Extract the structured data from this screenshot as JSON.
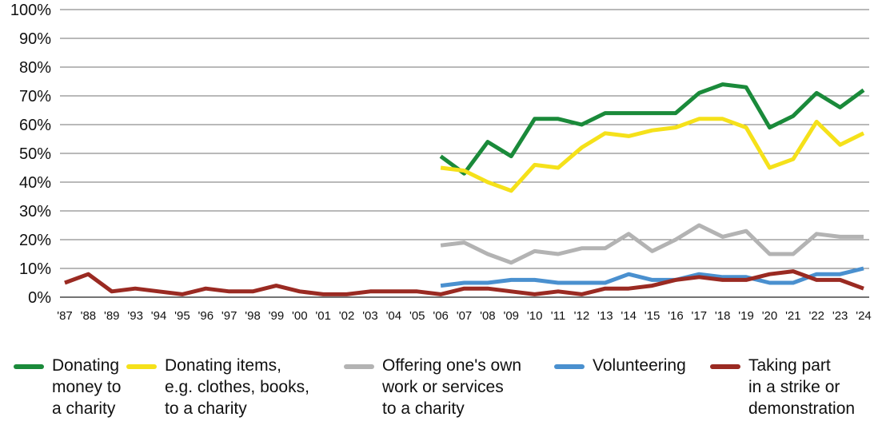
{
  "chart_data": {
    "type": "line",
    "title": "",
    "xlabel": "",
    "ylabel": "",
    "ylim": [
      0,
      100
    ],
    "y_ticks": [
      "0%",
      "10%",
      "20%",
      "30%",
      "40%",
      "50%",
      "60%",
      "70%",
      "80%",
      "90%",
      "100%"
    ],
    "grid": "horizontal",
    "legend_position": "bottom",
    "categories": [
      "'87",
      "'88",
      "'89",
      "'93",
      "'94",
      "'95",
      "'96",
      "'97",
      "'98",
      "'99",
      "'00",
      "'01",
      "'02",
      "'03",
      "'04",
      "'05",
      "'06",
      "'07",
      "'08",
      "'09",
      "'10",
      "'11",
      "'12",
      "'13",
      "'14",
      "'15",
      "'16",
      "'17",
      "'18",
      "'19",
      "'20",
      "'21",
      "'22",
      "'23",
      "'24"
    ],
    "series": [
      {
        "name": "Donating money to a charity",
        "label_lines": "Donating\nmoney to\na charity",
        "color": "#1a8a3a",
        "values": [
          null,
          null,
          null,
          null,
          null,
          null,
          null,
          null,
          null,
          null,
          null,
          null,
          null,
          null,
          null,
          null,
          49,
          43,
          54,
          49,
          62,
          62,
          60,
          64,
          64,
          64,
          64,
          71,
          74,
          73,
          59,
          63,
          71,
          66,
          72
        ]
      },
      {
        "name": "Donating items, e.g. clothes, books, to a charity",
        "label_lines": "Donating items,\ne.g. clothes, books,\nto a charity",
        "color": "#f5e11a",
        "values": [
          null,
          null,
          null,
          null,
          null,
          null,
          null,
          null,
          null,
          null,
          null,
          null,
          null,
          null,
          null,
          null,
          45,
          44,
          40,
          37,
          46,
          45,
          52,
          57,
          56,
          58,
          59,
          62,
          62,
          59,
          45,
          48,
          61,
          53,
          57
        ]
      },
      {
        "name": "Offering one's own work or services to a charity",
        "label_lines": "Offering one's own\nwork or services\nto a charity",
        "color": "#b3b3b3",
        "values": [
          null,
          null,
          null,
          null,
          null,
          null,
          null,
          null,
          null,
          null,
          null,
          null,
          null,
          null,
          null,
          null,
          18,
          19,
          15,
          12,
          16,
          15,
          17,
          17,
          22,
          16,
          20,
          25,
          21,
          23,
          15,
          15,
          22,
          21,
          21
        ]
      },
      {
        "name": "Volunteering",
        "label_lines": "Volunteering",
        "color": "#4a90cf",
        "values": [
          null,
          null,
          null,
          null,
          null,
          null,
          null,
          null,
          null,
          null,
          null,
          null,
          null,
          null,
          null,
          null,
          4,
          5,
          5,
          6,
          6,
          5,
          5,
          5,
          8,
          6,
          6,
          8,
          7,
          7,
          5,
          5,
          8,
          8,
          10
        ]
      },
      {
        "name": "Taking part in a strike or demonstration",
        "label_lines": "Taking part\nin a strike or\ndemonstration",
        "color": "#9a2a22",
        "values": [
          5,
          8,
          2,
          3,
          2,
          1,
          3,
          2,
          2,
          4,
          2,
          1,
          1,
          2,
          2,
          2,
          1,
          3,
          3,
          2,
          1,
          2,
          1,
          3,
          3,
          4,
          6,
          7,
          6,
          6,
          8,
          9,
          6,
          6,
          3
        ]
      }
    ]
  }
}
